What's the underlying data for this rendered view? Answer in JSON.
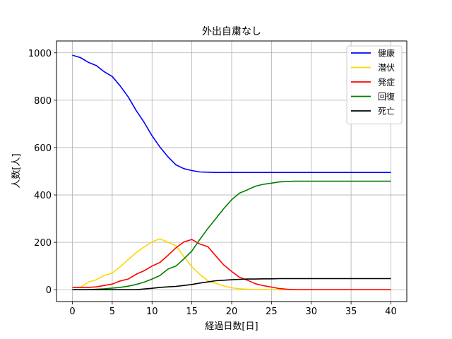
{
  "chart_data": {
    "type": "line",
    "title": "外出自粛なし",
    "xlabel": "経過日数[日]",
    "ylabel": "人数[人]",
    "xlim": [
      -2,
      42
    ],
    "ylim": [
      -50,
      1050
    ],
    "xticks": [
      0,
      5,
      10,
      15,
      20,
      25,
      30,
      35,
      40
    ],
    "yticks": [
      0,
      200,
      400,
      600,
      800,
      1000
    ],
    "grid": true,
    "legend_position": "top-right",
    "x": [
      0,
      1,
      2,
      3,
      4,
      5,
      6,
      7,
      8,
      9,
      10,
      11,
      12,
      13,
      14,
      15,
      16,
      17,
      18,
      19,
      20,
      21,
      22,
      23,
      24,
      25,
      26,
      27,
      28,
      29,
      30,
      31,
      32,
      33,
      34,
      35,
      36,
      37,
      38,
      39,
      40
    ],
    "series": [
      {
        "name": "健康",
        "color": "#0000ff",
        "values": [
          990,
          980,
          960,
          946,
          920,
          900,
          860,
          814,
          757,
          707,
          650,
          602,
          561,
          527,
          511,
          503,
          497,
          496,
          495,
          495,
          495,
          495,
          495,
          495,
          495,
          495,
          495,
          495,
          495,
          495,
          495,
          495,
          495,
          495,
          495,
          495,
          495,
          495,
          495,
          495,
          495
        ]
      },
      {
        "name": "潜伏",
        "color": "#ffd700",
        "values": [
          10,
          10,
          32,
          42,
          60,
          70,
          97,
          127,
          157,
          180,
          202,
          215,
          200,
          186,
          140,
          97,
          65,
          38,
          27,
          16,
          8,
          4,
          2,
          1,
          0,
          0,
          0,
          0,
          0,
          0,
          0,
          0,
          0,
          0,
          0,
          0,
          0,
          0,
          0,
          0,
          0
        ]
      },
      {
        "name": "発症",
        "color": "#ff0000",
        "values": [
          10,
          10,
          10,
          12,
          18,
          24,
          37,
          45,
          65,
          80,
          100,
          115,
          145,
          177,
          202,
          212,
          193,
          182,
          143,
          105,
          77,
          52,
          40,
          25,
          17,
          11,
          5,
          2,
          0,
          0,
          0,
          0,
          0,
          0,
          0,
          0,
          0,
          0,
          0,
          0,
          0
        ]
      },
      {
        "name": "回復",
        "color": "#008000",
        "values": [
          0,
          0,
          0,
          2,
          4,
          7,
          10,
          15,
          22,
          32,
          45,
          60,
          87,
          100,
          130,
          163,
          212,
          258,
          300,
          342,
          380,
          408,
          422,
          437,
          445,
          450,
          455,
          457,
          458,
          458,
          458,
          458,
          458,
          458,
          458,
          458,
          458,
          458,
          458,
          458,
          458
        ]
      },
      {
        "name": "死亡",
        "color": "#000000",
        "values": [
          0,
          0,
          0,
          0,
          0,
          0,
          0,
          0,
          0,
          3,
          6,
          10,
          12,
          14,
          18,
          22,
          28,
          33,
          38,
          40,
          42,
          44,
          45,
          45,
          46,
          46,
          47,
          47,
          47,
          47,
          47,
          47,
          47,
          47,
          47,
          47,
          47,
          47,
          47,
          47,
          47
        ]
      }
    ]
  }
}
